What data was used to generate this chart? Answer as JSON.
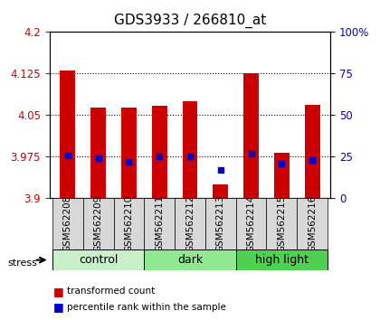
{
  "title": "GDS3933 / 266810_at",
  "samples": [
    "GSM562208",
    "GSM562209",
    "GSM562210",
    "GSM562211",
    "GSM562212",
    "GSM562213",
    "GSM562214",
    "GSM562215",
    "GSM562216"
  ],
  "bar_tops": [
    4.13,
    4.063,
    4.063,
    4.067,
    4.075,
    3.925,
    4.125,
    3.983,
    4.068
  ],
  "bar_base": 3.9,
  "percentile_values": [
    26,
    24,
    22,
    25,
    25,
    17,
    27,
    21,
    23
  ],
  "ylim_left": [
    3.9,
    4.2
  ],
  "ylim_right": [
    0,
    100
  ],
  "yticks_left": [
    3.9,
    3.975,
    4.05,
    4.125,
    4.2
  ],
  "yticks_right": [
    0,
    25,
    50,
    75,
    100
  ],
  "ytick_labels_left": [
    "3.9",
    "3.975",
    "4.05",
    "4.125",
    "4.2"
  ],
  "ytick_labels_right": [
    "0",
    "25",
    "50",
    "75",
    "100%"
  ],
  "groups": [
    {
      "label": "control",
      "start": 0,
      "end": 3,
      "color": "#c8f0c8"
    },
    {
      "label": "dark",
      "start": 3,
      "end": 6,
      "color": "#90e890"
    },
    {
      "label": "high light",
      "start": 6,
      "end": 9,
      "color": "#50d050"
    }
  ],
  "stress_label": "stress",
  "bar_color": "#cc0000",
  "blue_color": "#0000cc",
  "legend_red": "transformed count",
  "legend_blue": "percentile rank within the sample",
  "bar_width": 0.5,
  "grid_color": "black",
  "grid_style": "dotted",
  "title_fontsize": 11,
  "axis_label_color_left": "#cc0000",
  "axis_label_color_right": "#0000cc",
  "tick_fontsize": 8.5,
  "sample_fontsize": 7.5
}
